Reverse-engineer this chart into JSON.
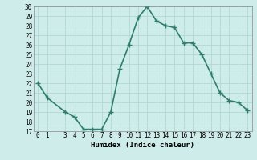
{
  "x": [
    0,
    1,
    3,
    4,
    5,
    6,
    7,
    8,
    9,
    10,
    11,
    12,
    13,
    14,
    15,
    16,
    17,
    18,
    19,
    20,
    21,
    22,
    23
  ],
  "y": [
    22.0,
    20.5,
    19.0,
    18.5,
    17.2,
    17.2,
    17.2,
    19.0,
    23.5,
    26.0,
    28.8,
    30.0,
    28.5,
    28.0,
    27.8,
    26.2,
    26.2,
    25.0,
    23.0,
    21.0,
    20.2,
    20.0,
    19.2
  ],
  "xlabel": "Humidex (Indice chaleur)",
  "xlim": [
    -0.5,
    23.5
  ],
  "ylim": [
    17,
    30
  ],
  "yticks": [
    17,
    18,
    19,
    20,
    21,
    22,
    23,
    24,
    25,
    26,
    27,
    28,
    29,
    30
  ],
  "xticks": [
    0,
    1,
    3,
    4,
    5,
    6,
    7,
    8,
    9,
    10,
    11,
    12,
    13,
    14,
    15,
    16,
    17,
    18,
    19,
    20,
    21,
    22,
    23
  ],
  "xtick_labels": [
    "0",
    "1",
    "3",
    "4",
    "5",
    "6",
    "7",
    "8",
    "9",
    "10",
    "11",
    "12",
    "13",
    "14",
    "15",
    "16",
    "17",
    "18",
    "19",
    "20",
    "21",
    "22",
    "23"
  ],
  "line_color": "#2e7d6e",
  "marker": "+",
  "marker_size": 4.0,
  "bg_color": "#ceecea",
  "grid_color": "#b0d8d4",
  "label_fontsize": 6.5,
  "tick_fontsize": 5.5,
  "line_width": 1.2
}
